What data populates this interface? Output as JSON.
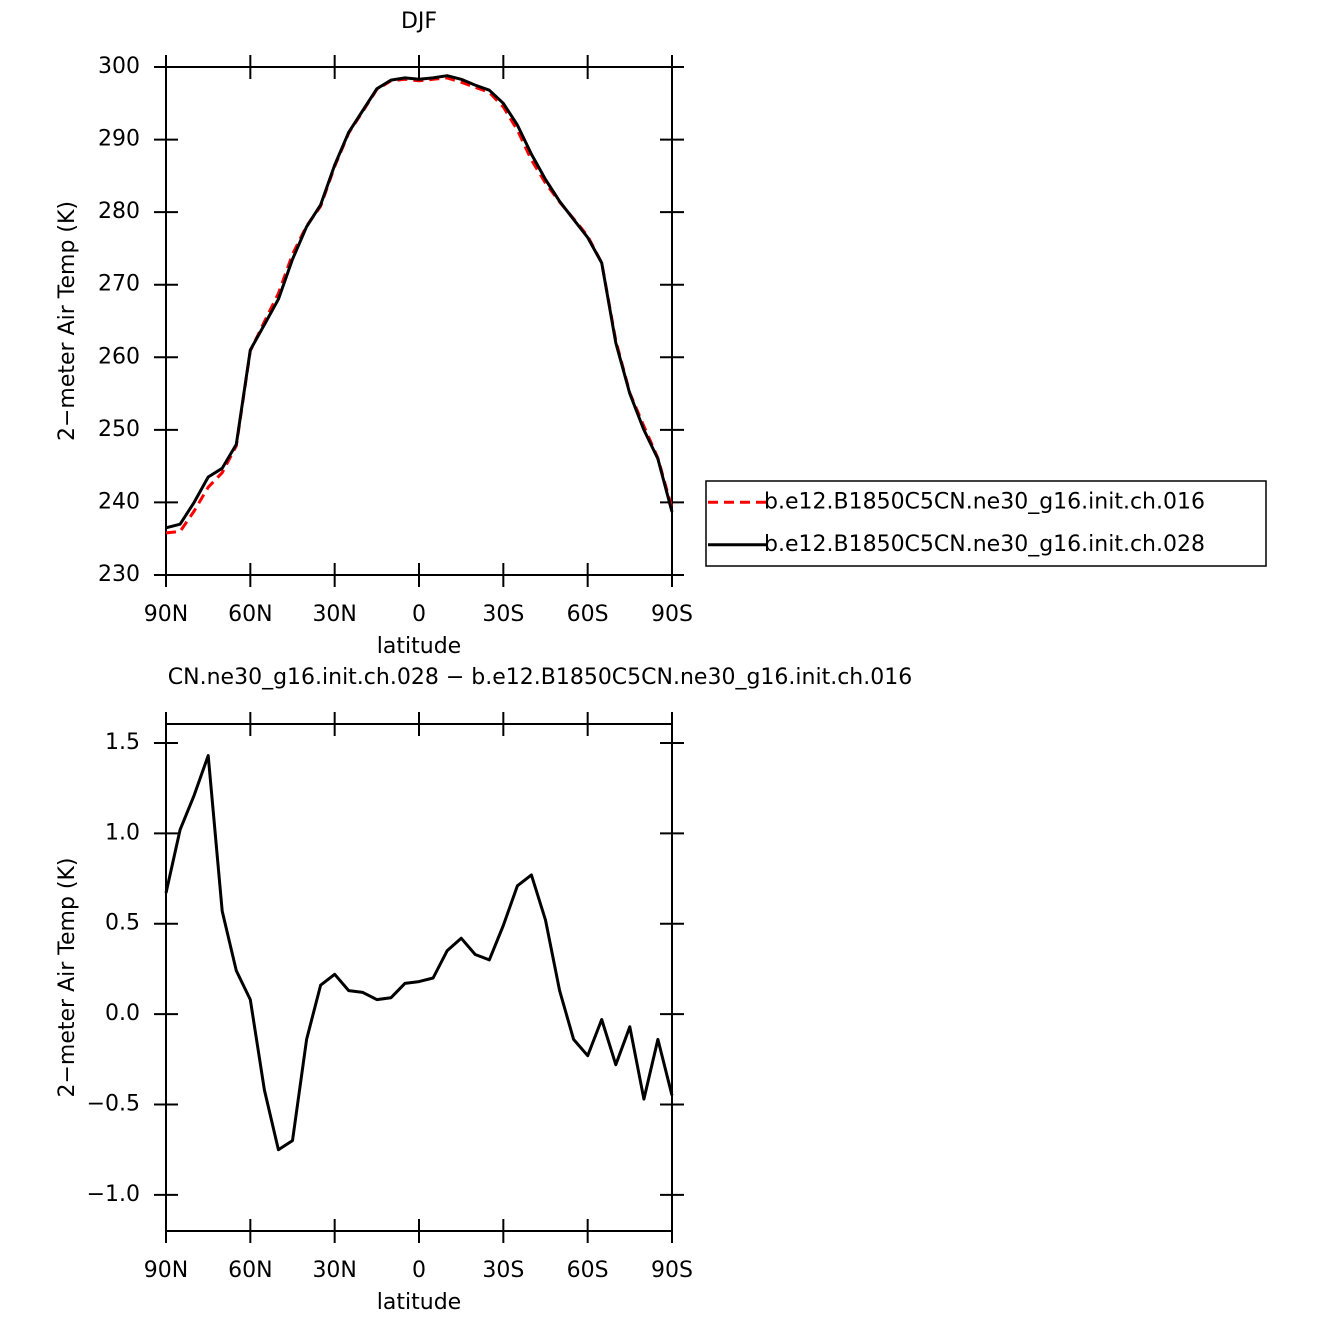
{
  "chart_data": [
    {
      "type": "line",
      "title": "DJF",
      "x_label": "latitude",
      "y_label": "2−meter Air Temp (K)",
      "x": [
        90,
        85,
        80,
        75,
        70,
        65,
        60,
        55,
        50,
        45,
        40,
        35,
        30,
        25,
        20,
        15,
        10,
        5,
        0,
        -5,
        -10,
        -15,
        -20,
        -25,
        -30,
        -35,
        -40,
        -45,
        -50,
        -55,
        -60,
        -65,
        -70,
        -75,
        -80,
        -85,
        -90
      ],
      "series": [
        {
          "name": "b.e12.B1850C5CN.ne30_g16.init.ch.016",
          "color": "#ff0000",
          "dashed": true,
          "values": [
            235.8,
            236.0,
            238.8,
            242.1,
            244.1,
            247.8,
            260.9,
            264.9,
            268.8,
            274.2,
            278.1,
            280.8,
            286.3,
            290.9,
            293.9,
            296.9,
            298.1,
            298.3,
            298.1,
            298.3,
            298.5,
            297.9,
            297.2,
            296.5,
            294.5,
            291.3,
            287.2,
            284.0,
            281.4,
            279.1,
            276.7,
            273.0,
            262.3,
            255.1,
            250.5,
            246.1,
            239.2
          ]
        },
        {
          "name": "b.e12.B1850C5CN.ne30_g16.init.ch.028",
          "color": "#000000",
          "dashed": false,
          "values": [
            236.5,
            237.0,
            240.0,
            243.5,
            244.7,
            248.0,
            261.0,
            264.5,
            268.0,
            273.5,
            278.0,
            281.0,
            286.5,
            291.0,
            294.0,
            297.0,
            298.2,
            298.5,
            298.3,
            298.5,
            298.8,
            298.3,
            297.5,
            296.8,
            295.0,
            292.0,
            288.0,
            284.5,
            281.5,
            279.0,
            276.5,
            273.0,
            262.0,
            255.0,
            250.0,
            246.0,
            238.7
          ]
        }
      ],
      "xlim": [
        90,
        -90
      ],
      "xticks": [
        {
          "value": 90,
          "label": "90N"
        },
        {
          "value": 60,
          "label": "60N"
        },
        {
          "value": 30,
          "label": "30N"
        },
        0,
        {
          "value": -30,
          "label": "30S"
        },
        {
          "value": -60,
          "label": "60S"
        },
        {
          "value": -90,
          "label": "90S"
        }
      ],
      "ylim": [
        230,
        300
      ],
      "yticks": [
        230,
        240,
        250,
        260,
        270,
        280,
        290,
        300
      ],
      "legend": "right"
    },
    {
      "type": "line",
      "title": "CN.ne30_g16.init.ch.028 − b.e12.B1850C5CN.ne30_g16.init.ch.016",
      "x_label": "latitude",
      "y_label": "2−meter Air Temp (K)",
      "x": [
        90,
        85,
        80,
        75,
        70,
        65,
        60,
        55,
        50,
        45,
        40,
        35,
        30,
        25,
        20,
        15,
        10,
        5,
        0,
        -5,
        -10,
        -15,
        -20,
        -25,
        -30,
        -35,
        -40,
        -45,
        -50,
        -55,
        -60,
        -65,
        -70,
        -75,
        -80,
        -85,
        -90
      ],
      "series": [
        {
          "color": "#000000",
          "values": [
            0.67,
            1.02,
            1.21,
            1.43,
            0.57,
            0.24,
            0.08,
            -0.42,
            -0.75,
            -0.7,
            -0.14,
            0.16,
            0.22,
            0.13,
            0.12,
            0.08,
            0.09,
            0.17,
            0.18,
            0.2,
            0.35,
            0.42,
            0.33,
            0.3,
            0.49,
            0.71,
            0.77,
            0.52,
            0.13,
            -0.14,
            -0.23,
            -0.03,
            -0.28,
            -0.07,
            -0.47,
            -0.14,
            -0.45
          ]
        }
      ],
      "xlim": [
        90,
        -90
      ],
      "xticks": [
        {
          "value": 90,
          "label": "90N"
        },
        {
          "value": 60,
          "label": "60N"
        },
        {
          "value": 30,
          "label": "30N"
        },
        0,
        {
          "value": -30,
          "label": "30S"
        },
        {
          "value": -60,
          "label": "60S"
        },
        {
          "value": -90,
          "label": "90S"
        }
      ],
      "ylim": [
        -1.2,
        1.605
      ],
      "yticks": [
        {
          "value": -1,
          "label": "−1.0"
        },
        {
          "value": -0.5,
          "label": "−0.5"
        },
        {
          "value": 0,
          "label": "0.0"
        },
        {
          "value": 0.5,
          "label": "0.5"
        },
        {
          "value": 1,
          "label": "1.0"
        },
        {
          "value": 1.5,
          "label": "1.5"
        }
      ]
    }
  ]
}
